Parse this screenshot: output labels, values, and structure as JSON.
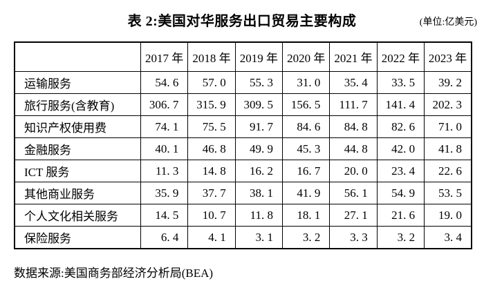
{
  "header": {
    "title": "表 2:美国对华服务出口贸易主要构成",
    "unit": "(单位:亿美元)"
  },
  "table": {
    "corner": "",
    "columns": [
      "2017 年",
      "2018 年",
      "2019 年",
      "2020 年",
      "2021 年",
      "2022 年",
      "2023 年"
    ],
    "rows": [
      {
        "label": "运输服务",
        "values": [
          "54. 6",
          "57. 0",
          "55. 3",
          "31. 0",
          "35. 4",
          "33. 5",
          "39. 2"
        ]
      },
      {
        "label": "旅行服务(含教育)",
        "values": [
          "306. 7",
          "315. 9",
          "309. 5",
          "156. 5",
          "111. 7",
          "141. 4",
          "202. 3"
        ]
      },
      {
        "label": "知识产权使用费",
        "values": [
          "74. 1",
          "75. 5",
          "91. 7",
          "84. 6",
          "84. 8",
          "82. 6",
          "71. 0"
        ]
      },
      {
        "label": "金融服务",
        "values": [
          "40. 1",
          "46. 8",
          "49. 9",
          "45. 3",
          "44. 8",
          "42. 0",
          "41. 8"
        ]
      },
      {
        "label": "ICT 服务",
        "values": [
          "11. 3",
          "14. 8",
          "16. 2",
          "16. 7",
          "20. 0",
          "23. 4",
          "22. 6"
        ]
      },
      {
        "label": "其他商业服务",
        "values": [
          "35. 9",
          "37. 7",
          "38. 1",
          "41. 9",
          "56. 1",
          "54. 9",
          "53. 5"
        ]
      },
      {
        "label": "个人文化相关服务",
        "values": [
          "14. 5",
          "10. 7",
          "11. 8",
          "18. 1",
          "27. 1",
          "21. 6",
          "19. 0"
        ]
      },
      {
        "label": "保险服务",
        "values": [
          "6. 4",
          "4. 1",
          "3. 1",
          "3. 2",
          "3. 3",
          "3. 2",
          "3. 4"
        ]
      }
    ]
  },
  "footer": {
    "source": "数据来源:美国商务部经济分析局(BEA)"
  },
  "chart_data": {
    "type": "table",
    "title": "表2:美国对华服务出口贸易主要构成",
    "unit": "亿美元",
    "categories": [
      2017,
      2018,
      2019,
      2020,
      2021,
      2022,
      2023
    ],
    "series": [
      {
        "name": "运输服务",
        "values": [
          54.6,
          57.0,
          55.3,
          31.0,
          35.4,
          33.5,
          39.2
        ]
      },
      {
        "name": "旅行服务(含教育)",
        "values": [
          306.7,
          315.9,
          309.5,
          156.5,
          111.7,
          141.4,
          202.3
        ]
      },
      {
        "name": "知识产权使用费",
        "values": [
          74.1,
          75.5,
          91.7,
          84.6,
          84.8,
          82.6,
          71.0
        ]
      },
      {
        "name": "金融服务",
        "values": [
          40.1,
          46.8,
          49.9,
          45.3,
          44.8,
          42.0,
          41.8
        ]
      },
      {
        "name": "ICT服务",
        "values": [
          11.3,
          14.8,
          16.2,
          16.7,
          20.0,
          23.4,
          22.6
        ]
      },
      {
        "name": "其他商业服务",
        "values": [
          35.9,
          37.7,
          38.1,
          41.9,
          56.1,
          54.9,
          53.5
        ]
      },
      {
        "name": "个人文化相关服务",
        "values": [
          14.5,
          10.7,
          11.8,
          18.1,
          27.1,
          21.6,
          19.0
        ]
      },
      {
        "name": "保险服务",
        "values": [
          6.4,
          4.1,
          3.1,
          3.2,
          3.3,
          3.2,
          3.4
        ]
      }
    ],
    "source": "美国商务部经济分析局(BEA)"
  },
  "colors": {
    "background": "#ffffff",
    "text": "#000000",
    "border": "#000000"
  }
}
